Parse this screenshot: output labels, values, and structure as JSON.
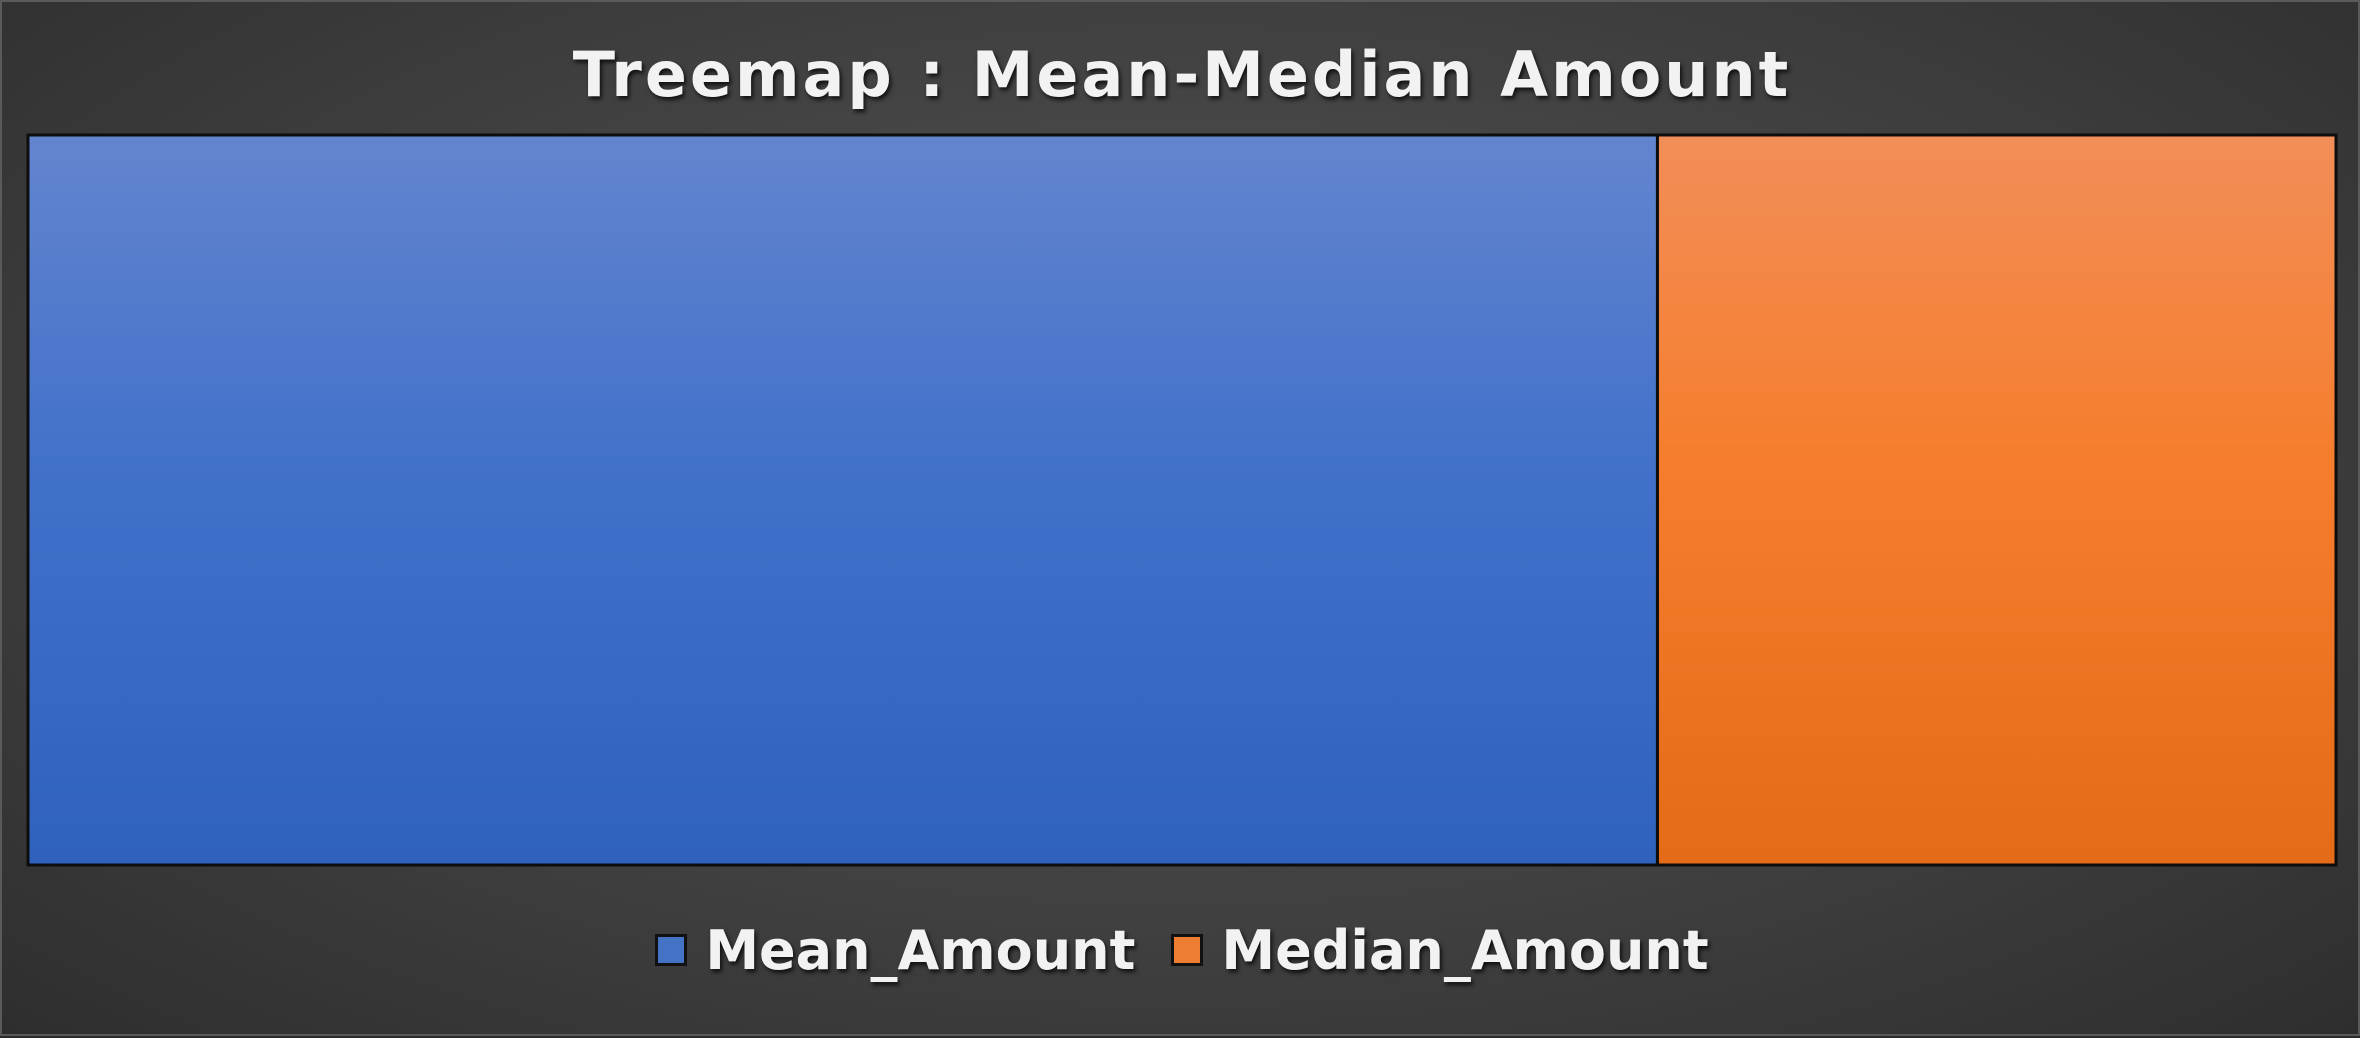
{
  "chart_data": {
    "type": "treemap",
    "title": "Treemap : Mean-Median Amount",
    "legend_position": "bottom",
    "series": [
      {
        "name": "Mean_Amount",
        "value": 70.6,
        "color": "#4472c4"
      },
      {
        "name": "Median_Amount",
        "value": 29.4,
        "color": "#ed7d31"
      }
    ]
  }
}
